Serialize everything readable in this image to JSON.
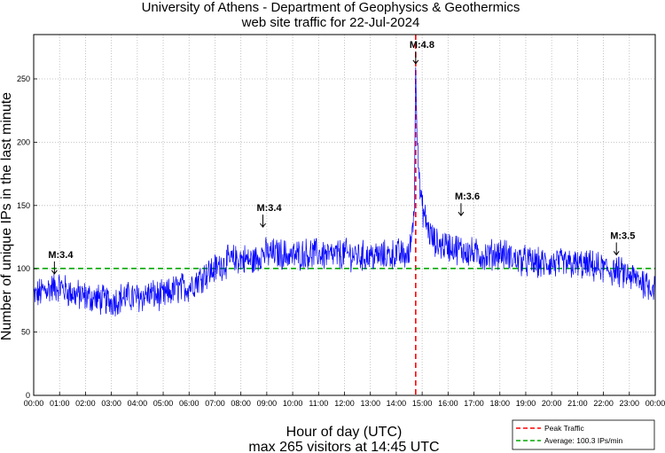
{
  "chart_data": {
    "type": "line",
    "title": "University of Athens - Department of Geophysics & Geothermics",
    "subtitle": "web site traffic for 22-Jul-2024",
    "xlabel": "Hour of day (UTC)",
    "ylabel": "Number of unique IPs in the last minute",
    "footer": "max 265 visitors at 14:45 UTC",
    "xlim": [
      0,
      24
    ],
    "ylim": [
      0,
      285
    ],
    "yticks": [
      0,
      50,
      100,
      150,
      200,
      250
    ],
    "xtick_labels": [
      "00:00",
      "01:00",
      "02:00",
      "03:00",
      "04:00",
      "05:00",
      "06:00",
      "07:00",
      "08:00",
      "09:00",
      "10:00",
      "11:00",
      "12:00",
      "13:00",
      "14:00",
      "15:00",
      "16:00",
      "17:00",
      "18:00",
      "19:00",
      "20:00",
      "21:00",
      "22:00",
      "23:00",
      "00:00"
    ],
    "grid": true,
    "series": [
      {
        "name": "Traffic",
        "color": "#0000ff",
        "x": [
          0,
          0.5,
          1,
          1.5,
          2,
          2.5,
          3,
          3.5,
          4,
          4.5,
          5,
          5.5,
          6,
          6.5,
          7,
          7.5,
          8,
          8.5,
          8.8,
          9,
          9.5,
          10,
          10.5,
          11,
          11.5,
          12,
          12.5,
          13,
          13.5,
          14,
          14.5,
          14.7,
          14.75,
          14.8,
          14.9,
          15,
          15.25,
          15.5,
          16,
          16.5,
          17,
          17.5,
          18,
          18.5,
          19,
          19.5,
          20,
          20.5,
          21,
          21.5,
          22,
          22.5,
          23,
          23.5,
          24
        ],
        "values": [
          78,
          84,
          86,
          80,
          78,
          76,
          74,
          78,
          77,
          80,
          78,
          84,
          86,
          94,
          100,
          106,
          108,
          106,
          112,
          112,
          112,
          110,
          112,
          112,
          110,
          112,
          110,
          110,
          110,
          112,
          110,
          150,
          265,
          215,
          165,
          148,
          130,
          120,
          118,
          115,
          112,
          110,
          113,
          108,
          106,
          104,
          104,
          104,
          103,
          102,
          100,
          98,
          94,
          90,
          85
        ]
      }
    ],
    "reference_lines": [
      {
        "name": "Peak Traffic",
        "orientation": "vertical",
        "x": 14.75,
        "color": "#ff0000",
        "style": "dashed"
      },
      {
        "name": "Average: 100.3 IPs/min",
        "orientation": "horizontal",
        "y": 100.3,
        "color": "#00aa00",
        "style": "dashed"
      }
    ],
    "annotations": [
      {
        "label": "M:3.4",
        "x": 0.8,
        "y": 96
      },
      {
        "label": "M:3.4",
        "x": 8.85,
        "y": 133
      },
      {
        "label": "M:4.8",
        "x": 14.75,
        "y": 262
      },
      {
        "label": "M:3.6",
        "x": 16.5,
        "y": 142
      },
      {
        "label": "M:3.5",
        "x": 22.5,
        "y": 111
      }
    ],
    "legend": {
      "position": "bottom-right",
      "entries": [
        {
          "label": "Peak Traffic",
          "color": "#ff0000"
        },
        {
          "label": "Average: 100.3 IPs/min",
          "color": "#00aa00"
        }
      ]
    }
  }
}
